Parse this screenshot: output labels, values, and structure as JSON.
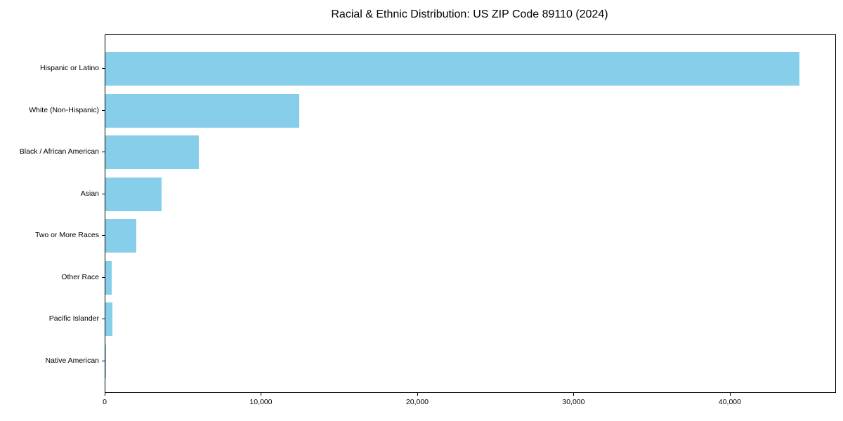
{
  "figure": {
    "background": "#ffffff",
    "axis_color": "#000000",
    "text_color": "#000000"
  },
  "chart_data": {
    "type": "bar",
    "orientation": "horizontal",
    "title": "Racial & Ethnic Distribution: US ZIP Code 89110 (2024)",
    "categories": [
      "Hispanic or Latino",
      "White (Non-Hispanic)",
      "Black / African American",
      "Asian",
      "Two or More Races",
      "Other Race",
      "Pacific Islander",
      "Native American"
    ],
    "values": [
      44400,
      12400,
      6000,
      3600,
      2000,
      400,
      430,
      50
    ],
    "bar_color": "#87CEEB",
    "xlabel": "",
    "ylabel": "",
    "xlim": [
      0,
      46700
    ],
    "xticks": [
      0,
      10000,
      20000,
      30000,
      40000
    ],
    "xtick_labels": [
      "0",
      "10,000",
      "20,000",
      "30,000",
      "40,000"
    ],
    "grid": false,
    "legend": null
  }
}
